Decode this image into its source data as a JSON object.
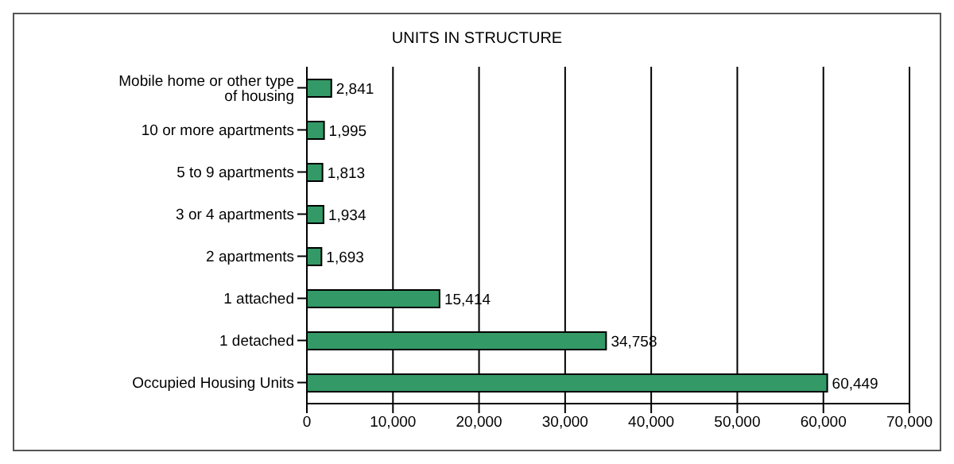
{
  "chart_data": {
    "type": "bar",
    "orientation": "horizontal",
    "title": "UNITS IN STRUCTURE",
    "categories": [
      "Mobile home or other type of housing",
      "10 or more apartments",
      "5 to 9 apartments",
      "3 or 4 apartments",
      "2 apartments",
      "1 attached",
      "1 detached",
      "Occupied Housing Units"
    ],
    "values": [
      2841,
      1995,
      1813,
      1934,
      1693,
      15414,
      34758,
      60449
    ],
    "value_labels": [
      "2,841",
      "1,995",
      "1,813",
      "1,934",
      "1,693",
      "15,414",
      "34,758",
      "60,449"
    ],
    "color": "#339966",
    "grid": "x",
    "xlim": [
      0,
      70000
    ],
    "xticks": [
      0,
      {
        "value": 10000,
        "label": "10,000"
      },
      {
        "value": 20000,
        "label": "20,000"
      },
      {
        "value": 30000,
        "label": "30,000"
      },
      {
        "value": 40000,
        "label": "40,000"
      },
      {
        "value": 50000,
        "label": "50,000"
      },
      {
        "value": 60000,
        "label": "60,000"
      },
      {
        "value": 70000,
        "label": "70,000"
      }
    ]
  }
}
